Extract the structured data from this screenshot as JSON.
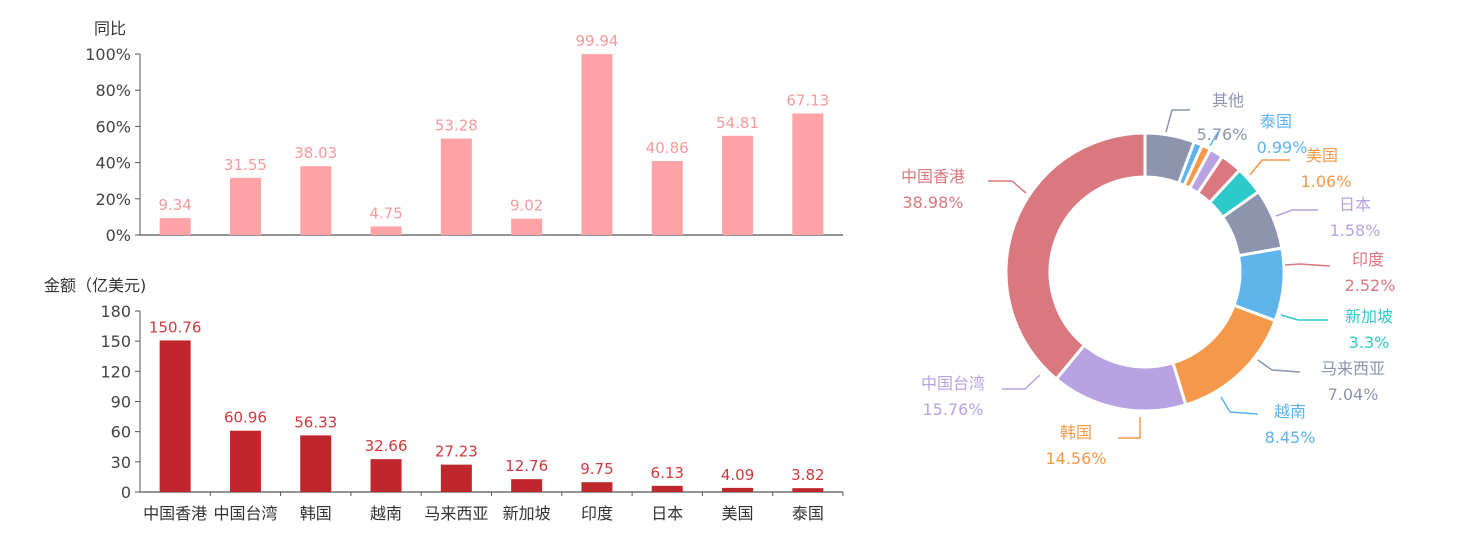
{
  "chart_data": [
    {
      "type": "bar",
      "ylabel": "同比",
      "ylim": [
        0,
        100
      ],
      "yticks": [
        "0%",
        "20%",
        "40%",
        "60%",
        "80%",
        "100%"
      ],
      "categories": [
        "中国香港",
        "中国台湾",
        "韩国",
        "越南",
        "马来西亚",
        "新加坡",
        "印度",
        "日本",
        "美国",
        "泰国"
      ],
      "values": [
        9.34,
        31.55,
        38.03,
        4.75,
        53.28,
        9.02,
        99.94,
        40.86,
        54.81,
        67.13
      ],
      "value_labels": [
        "9.34",
        "31.55",
        "38.03",
        "4.75",
        "53.28",
        "9.02",
        "99.94",
        "40.86",
        "54.81",
        "67.13"
      ],
      "color": "#ffa3a6",
      "label_color": "#f49a9c"
    },
    {
      "type": "bar",
      "ylabel": "金额（亿美元)",
      "ylim": [
        0,
        180
      ],
      "yticks": [
        "0",
        "30",
        "60",
        "90",
        "120",
        "150",
        "180"
      ],
      "categories": [
        "中国香港",
        "中国台湾",
        "韩国",
        "越南",
        "马来西亚",
        "新加坡",
        "印度",
        "日本",
        "美国",
        "泰国"
      ],
      "values": [
        150.76,
        60.96,
        56.33,
        32.66,
        27.23,
        12.76,
        9.75,
        6.13,
        4.09,
        3.82
      ],
      "value_labels": [
        "150.76",
        "60.96",
        "56.33",
        "32.66",
        "27.23",
        "12.76",
        "9.75",
        "6.13",
        "4.09",
        "3.82"
      ],
      "color": "#c0272d",
      "label_color": "#cf3a3d"
    },
    {
      "type": "pie",
      "slices": [
        {
          "name": "其他",
          "value": 5.76,
          "pct_label": "5.76%",
          "color": "#8c95ad",
          "label_color": "#8c95ad"
        },
        {
          "name": "泰国",
          "value": 0.99,
          "pct_label": "0.99%",
          "color": "#5db3ea",
          "label_color": "#5db3ea"
        },
        {
          "name": "美国",
          "value": 1.06,
          "pct_label": "1.06%",
          "color": "#f4994a",
          "label_color": "#f4994a"
        },
        {
          "name": "日本",
          "value": 1.58,
          "pct_label": "1.58%",
          "color": "#b7a3e1",
          "label_color": "#b7a3e1"
        },
        {
          "name": "印度",
          "value": 2.52,
          "pct_label": "2.52%",
          "color": "#d9787e",
          "label_color": "#d9787e"
        },
        {
          "name": "新加坡",
          "value": 3.3,
          "pct_label": "3.3%",
          "color": "#2ec9cb",
          "label_color": "#2ec9cb"
        },
        {
          "name": "马来西亚",
          "value": 7.04,
          "pct_label": "7.04%",
          "color": "#8c95ad",
          "label_color": "#8c95ad"
        },
        {
          "name": "越南",
          "value": 8.45,
          "pct_label": "8.45%",
          "color": "#5db3ea",
          "label_color": "#5db3ea"
        },
        {
          "name": "韩国",
          "value": 14.56,
          "pct_label": "14.56%",
          "color": "#f4994a",
          "label_color": "#f4994a"
        },
        {
          "name": "中国台湾",
          "value": 15.76,
          "pct_label": "15.76%",
          "color": "#b7a3e1",
          "label_color": "#b7a3e1"
        },
        {
          "name": "中国香港",
          "value": 38.98,
          "pct_label": "38.98%",
          "color": "#d9787e",
          "label_color": "#d9787e"
        }
      ]
    }
  ]
}
